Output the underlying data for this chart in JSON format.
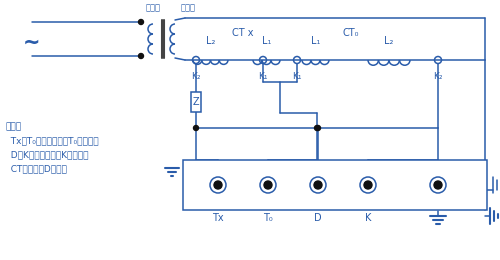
{
  "bg": "#ffffff",
  "lc": "#2a5caa",
  "tc": "#2a5caa",
  "fw": 5.0,
  "fh": 2.6,
  "dpi": 100,
  "notes": [
    "其中：",
    "  Tx、T₀为工作电流，T₀为高端，",
    "  D、K为差流，其中K为高端，",
    "  CT测量时，D必须接"
  ],
  "lbl_ty": "调压器",
  "lbl_sl": "升流器",
  "lbl_CTx": "CT x",
  "lbl_CT0": "CT₀",
  "lbl_L2a": "L₂",
  "lbl_L1x": "L₁",
  "lbl_L10": "L₁",
  "lbl_L2b": "L₂",
  "lbl_K2a": "K₂",
  "lbl_K1x": "K₁",
  "lbl_K10": "K₁",
  "lbl_K2b": "K₂",
  "lbl_Z": "Z",
  "lbl_Tx": "Tx",
  "lbl_T0": "T₀",
  "lbl_D": "D",
  "lbl_K": "K"
}
